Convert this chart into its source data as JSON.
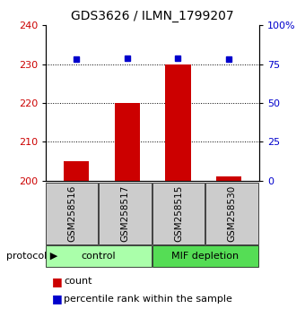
{
  "title": "GDS3626 / ILMN_1799207",
  "samples": [
    "GSM258516",
    "GSM258517",
    "GSM258515",
    "GSM258530"
  ],
  "count_values": [
    205.0,
    220.0,
    230.0,
    201.0
  ],
  "percentile_values": [
    78,
    79,
    79,
    78
  ],
  "ylim_left": [
    200,
    240
  ],
  "ylim_right": [
    0,
    100
  ],
  "yticks_left": [
    200,
    210,
    220,
    230,
    240
  ],
  "yticks_right": [
    0,
    25,
    50,
    75,
    100
  ],
  "ytick_labels_right": [
    "0",
    "25",
    "50",
    "75",
    "100%"
  ],
  "bar_color": "#cc0000",
  "dot_color": "#0000cc",
  "groups": [
    {
      "label": "control",
      "color": "#aaffaa"
    },
    {
      "label": "MIF depletion",
      "color": "#55dd55"
    }
  ],
  "sample_box_color": "#cccccc",
  "legend_count_label": "count",
  "legend_pct_label": "percentile rank within the sample",
  "dotted_line_values": [
    210,
    220,
    230
  ],
  "bar_width": 0.5
}
